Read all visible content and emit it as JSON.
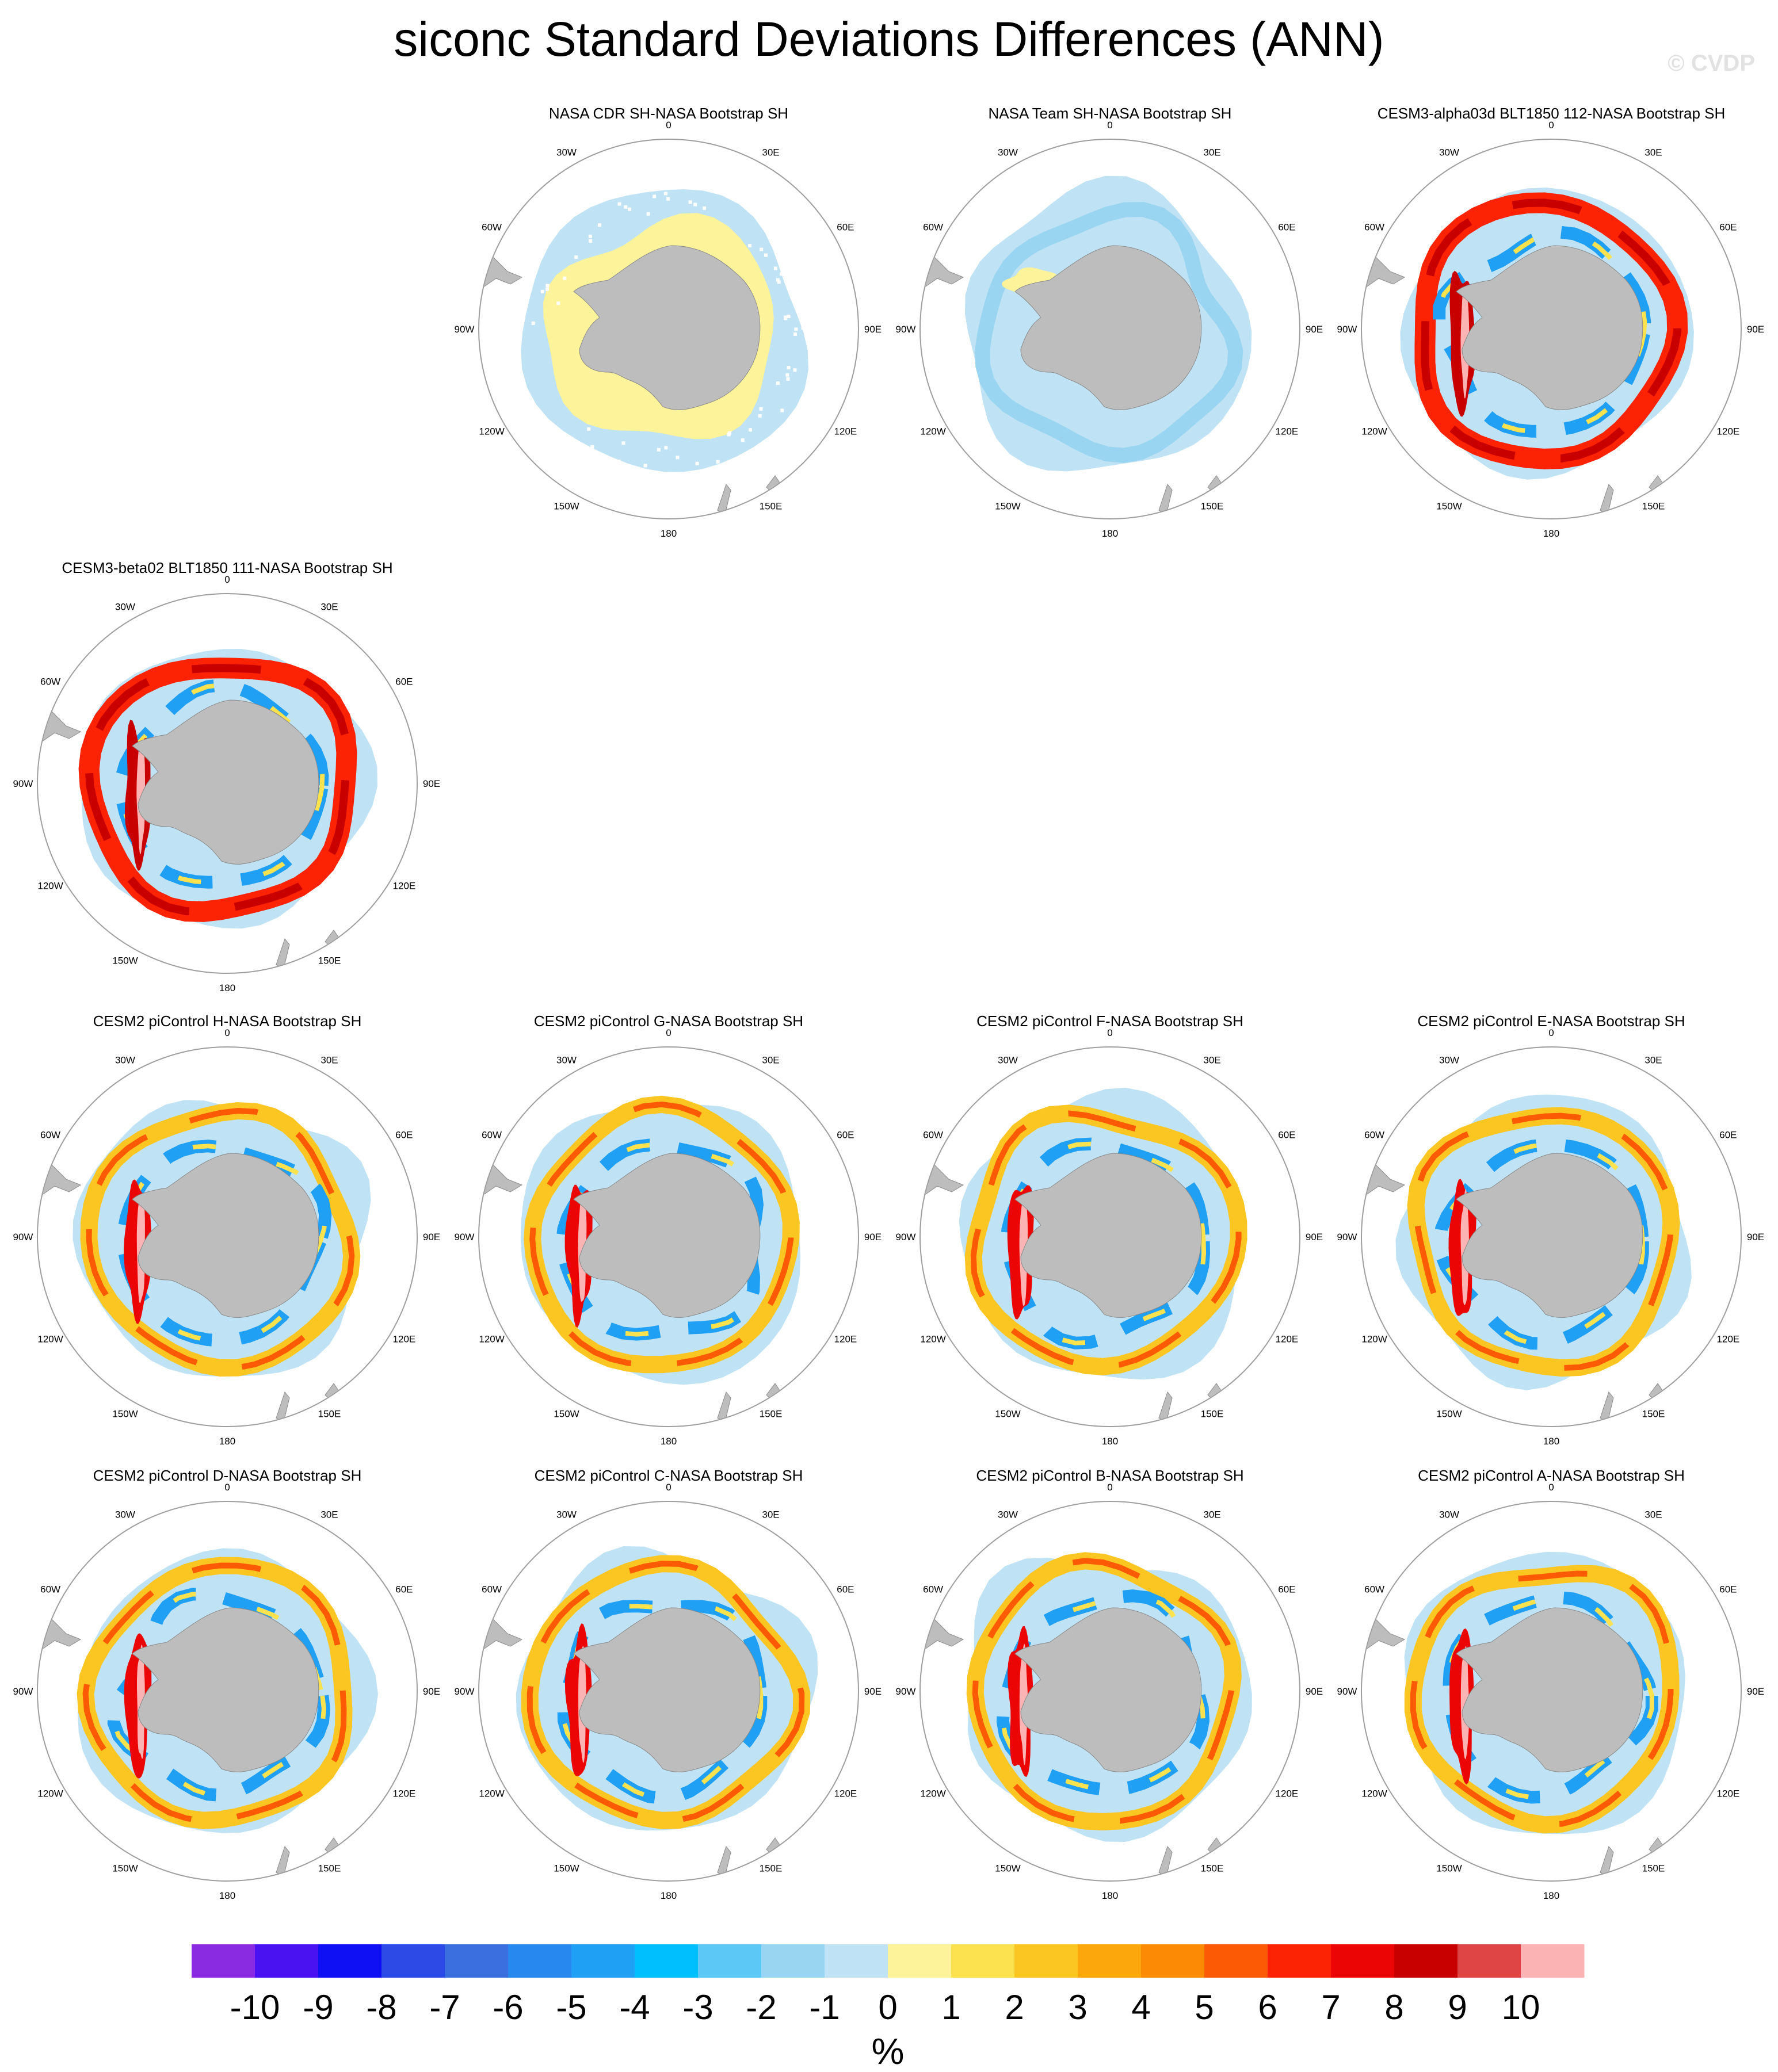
{
  "title": "siconc Standard Deviations Differences (ANN)",
  "watermark": "© CVDP",
  "lon_labels": [
    "0",
    "30E",
    "60E",
    "90E",
    "120E",
    "150E",
    "180",
    "150W",
    "120W",
    "90W",
    "60W",
    "30W"
  ],
  "colors": {
    "background": "#ffffff",
    "land": "#bdbdbd",
    "circle": "#9e9e9e",
    "mask_lightblue": "#bfe2f4",
    "neutral_yellow": "#fdf39a"
  },
  "chart_data": {
    "type": "heatmap",
    "variable": "siconc",
    "statistic": "Standard Deviations Differences",
    "season": "ANN",
    "projection": "south polar stereographic",
    "panels": [
      {
        "row": 1,
        "col": 2,
        "title": "NASA CDR SH-NASA Bootstrap SH",
        "pattern": "near_zero_positive"
      },
      {
        "row": 1,
        "col": 3,
        "title": "NASA Team SH-NASA Bootstrap SH",
        "pattern": "near_zero_negative"
      },
      {
        "row": 1,
        "col": 4,
        "title": "CESM3-alpha03d BLT1850 112-NASA Bootstrap SH",
        "pattern": "strong_ring"
      },
      {
        "row": 2,
        "col": 1,
        "title": "CESM3-beta02 BLT1850 111-NASA Bootstrap SH",
        "pattern": "strong_ring"
      },
      {
        "row": 3,
        "col": 1,
        "title": "CESM2 piControl H-NASA Bootstrap SH",
        "pattern": "moderate_ring"
      },
      {
        "row": 3,
        "col": 2,
        "title": "CESM2 piControl G-NASA Bootstrap SH",
        "pattern": "moderate_ring"
      },
      {
        "row": 3,
        "col": 3,
        "title": "CESM2 piControl F-NASA Bootstrap SH",
        "pattern": "moderate_ring"
      },
      {
        "row": 3,
        "col": 4,
        "title": "CESM2 piControl E-NASA Bootstrap SH",
        "pattern": "moderate_ring"
      },
      {
        "row": 4,
        "col": 1,
        "title": "CESM2 piControl D-NASA Bootstrap SH",
        "pattern": "moderate_ring"
      },
      {
        "row": 4,
        "col": 2,
        "title": "CESM2 piControl C-NASA Bootstrap SH",
        "pattern": "moderate_ring"
      },
      {
        "row": 4,
        "col": 3,
        "title": "CESM2 piControl B-NASA Bootstrap SH",
        "pattern": "moderate_ring"
      },
      {
        "row": 4,
        "col": 4,
        "title": "CESM2 piControl A-NASA Bootstrap SH",
        "pattern": "moderate_ring"
      }
    ],
    "colorbar": {
      "units": "%",
      "labels": [
        "-10",
        "-9",
        "-8",
        "-7",
        "-6",
        "-5",
        "-4",
        "-3",
        "-2",
        "-1",
        "0",
        "1",
        "2",
        "3",
        "4",
        "5",
        "6",
        "7",
        "8",
        "9",
        "10"
      ],
      "colors": [
        "#8a2be2",
        "#4a12f0",
        "#1010f5",
        "#2e4ae6",
        "#3b6fe0",
        "#2788f0",
        "#1fa0f5",
        "#00bfff",
        "#5bc8f5",
        "#99d5f0",
        "#bfe2f4",
        "#fdf39a",
        "#fde24f",
        "#fcc622",
        "#fca70c",
        "#fc8a04",
        "#fc5a04",
        "#fc2204",
        "#ec0505",
        "#c80000",
        "#e04545",
        "#fbb3b3"
      ]
    }
  }
}
